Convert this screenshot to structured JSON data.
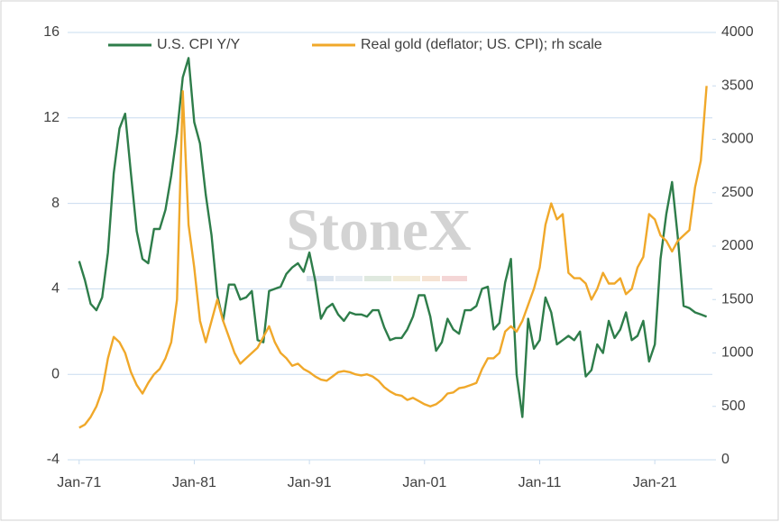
{
  "chart_data": {
    "type": "line",
    "watermark": "StoneX",
    "x": [
      1971,
      1971.5,
      1972,
      1972.5,
      1973,
      1973.5,
      1974,
      1974.5,
      1975,
      1975.5,
      1976,
      1976.5,
      1977,
      1977.5,
      1978,
      1978.5,
      1979,
      1979.5,
      1980,
      1980.5,
      1981,
      1981.5,
      1982,
      1982.5,
      1983,
      1983.5,
      1984,
      1984.5,
      1985,
      1985.5,
      1986,
      1986.5,
      1987,
      1987.5,
      1988,
      1988.5,
      1989,
      1989.5,
      1990,
      1990.5,
      1991,
      1991.5,
      1992,
      1992.5,
      1993,
      1993.5,
      1994,
      1994.5,
      1995,
      1995.5,
      1996,
      1996.5,
      1997,
      1997.5,
      1998,
      1998.5,
      1999,
      1999.5,
      2000,
      2000.5,
      2001,
      2001.5,
      2002,
      2002.5,
      2003,
      2003.5,
      2004,
      2004.5,
      2005,
      2005.5,
      2006,
      2006.5,
      2007,
      2007.5,
      2008,
      2008.5,
      2009,
      2009.5,
      2010,
      2010.5,
      2011,
      2011.5,
      2012,
      2012.5,
      2013,
      2013.5,
      2014,
      2014.5,
      2015,
      2015.5,
      2016,
      2016.5,
      2017,
      2017.5,
      2018,
      2018.5,
      2019,
      2019.5,
      2020,
      2020.5,
      2021,
      2021.5,
      2022,
      2022.5,
      2023,
      2023.5,
      2024,
      2024.5,
      2025,
      2025.5
    ],
    "series": [
      {
        "name": "U.S. CPI  Y/Y",
        "color": "#2e7d4a",
        "axis": "y",
        "values": [
          5.3,
          4.4,
          3.3,
          3.0,
          3.6,
          5.7,
          9.4,
          11.5,
          12.2,
          9.4,
          6.7,
          5.4,
          5.2,
          6.8,
          6.8,
          7.7,
          9.3,
          11.3,
          13.9,
          14.8,
          11.8,
          10.8,
          8.4,
          6.5,
          3.7,
          2.5,
          4.2,
          4.2,
          3.5,
          3.6,
          3.9,
          1.6,
          1.5,
          3.9,
          4.0,
          4.1,
          4.7,
          5.0,
          5.2,
          4.8,
          5.7,
          4.4,
          2.6,
          3.1,
          3.3,
          2.8,
          2.5,
          2.9,
          2.8,
          2.8,
          2.7,
          3.0,
          3.0,
          2.2,
          1.6,
          1.7,
          1.7,
          2.1,
          2.7,
          3.7,
          3.7,
          2.7,
          1.1,
          1.5,
          2.6,
          2.1,
          1.9,
          3.0,
          3.0,
          3.2,
          4.0,
          4.1,
          2.1,
          2.4,
          4.3,
          5.4,
          0.0,
          -2.0,
          2.6,
          1.2,
          1.6,
          3.6,
          2.9,
          1.4,
          1.6,
          1.8,
          1.6,
          2.0,
          -0.1,
          0.2,
          1.4,
          1.0,
          2.5,
          1.7,
          2.1,
          2.9,
          1.6,
          1.8,
          2.5,
          0.6,
          1.4,
          5.4,
          7.5,
          9.0,
          6.4,
          3.2,
          3.1,
          2.9,
          2.8,
          2.7
        ]
      },
      {
        "name": "Real gold (deflator; US. CPI); rh scale",
        "color": "#f0a82a",
        "axis": "y2",
        "values": [
          300,
          330,
          400,
          500,
          650,
          950,
          1150,
          1100,
          1000,
          820,
          700,
          620,
          720,
          800,
          850,
          950,
          1100,
          1500,
          3450,
          2200,
          1800,
          1300,
          1100,
          1300,
          1500,
          1300,
          1150,
          1000,
          900,
          950,
          1000,
          1050,
          1150,
          1250,
          1100,
          1000,
          950,
          880,
          900,
          850,
          820,
          780,
          750,
          740,
          780,
          820,
          830,
          820,
          800,
          790,
          800,
          780,
          740,
          680,
          640,
          610,
          600,
          560,
          580,
          550,
          520,
          500,
          520,
          560,
          620,
          630,
          670,
          680,
          700,
          720,
          850,
          950,
          950,
          1000,
          1200,
          1250,
          1200,
          1300,
          1450,
          1600,
          1800,
          2200,
          2400,
          2250,
          2300,
          1750,
          1700,
          1700,
          1650,
          1500,
          1600,
          1750,
          1650,
          1650,
          1700,
          1550,
          1600,
          1800,
          1900,
          2300,
          2250,
          2100,
          2050,
          1950,
          2050,
          2100,
          2150,
          2550,
          2800,
          3500
        ]
      }
    ],
    "xlim": [
      1970,
      2026
    ],
    "xticks": [
      {
        "value": 1971,
        "label": "Jan-71"
      },
      {
        "value": 1981,
        "label": "Jan-81"
      },
      {
        "value": 1991,
        "label": "Jan-91"
      },
      {
        "value": 2001,
        "label": "Jan-01"
      },
      {
        "value": 2011,
        "label": "Jan-11"
      },
      {
        "value": 2021,
        "label": "Jan-21"
      }
    ],
    "ylim": [
      -4,
      16
    ],
    "yticks": [
      -4,
      0,
      4,
      8,
      12,
      16
    ],
    "y2lim": [
      0,
      4000
    ],
    "y2ticks": [
      0,
      500,
      1000,
      1500,
      2000,
      2500,
      3000,
      3500,
      4000
    ],
    "grid": true
  }
}
